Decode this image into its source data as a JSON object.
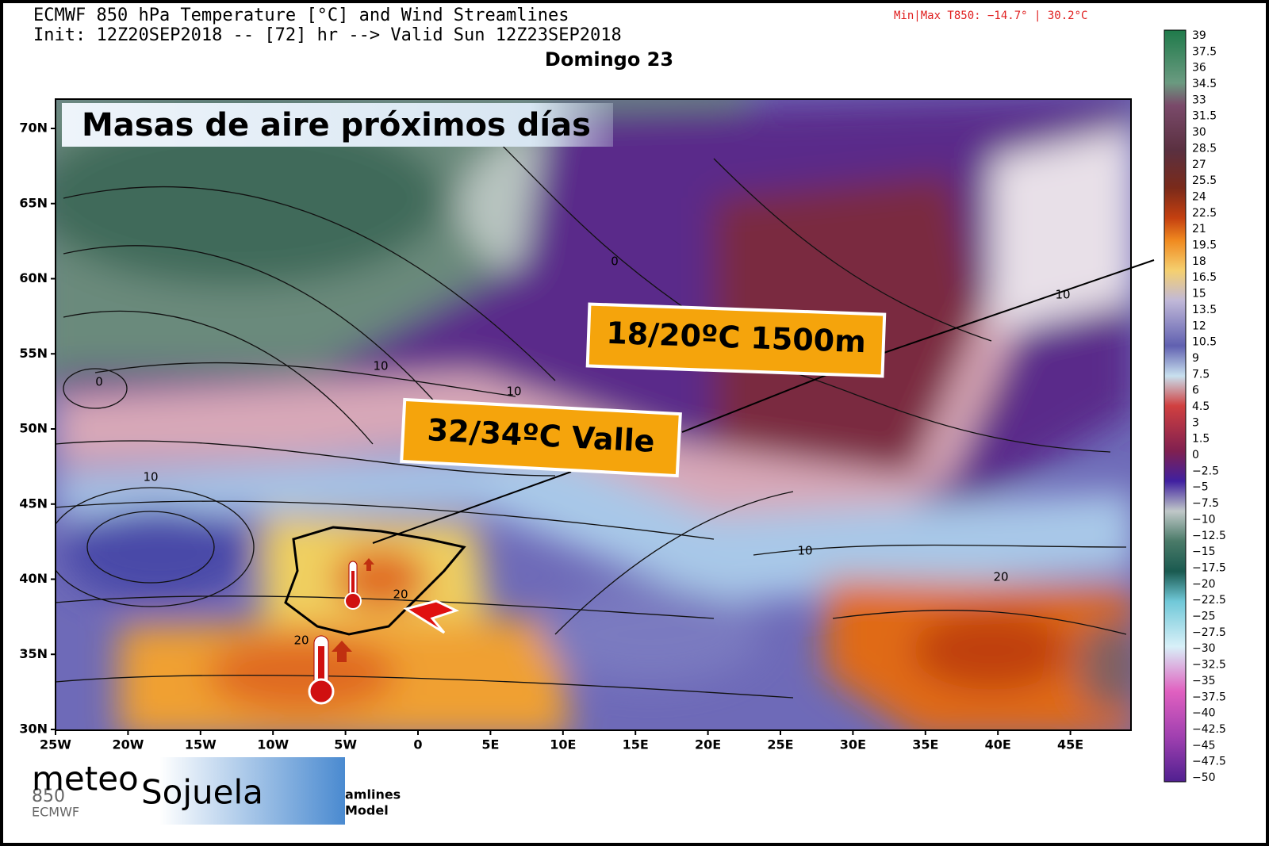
{
  "header": {
    "line1": "ECMWF 850 hPa Temperature [°C] and Wind Streamlines",
    "line2": "Init: 12Z20SEP2018 -- [72] hr --> Valid Sun 12Z23SEP2018",
    "day": "Domingo 23",
    "minmax": "Min|Max T850: −14.7° |  30.2°C"
  },
  "overlay_title": "Masas de aire próximos días",
  "callouts": [
    "18/20ºC 1500m",
    "32/34ºC Valle"
  ],
  "lat_labels": [
    "70N",
    "65N",
    "60N",
    "55N",
    "50N",
    "45N",
    "40N",
    "35N",
    "30N"
  ],
  "lon_labels": [
    "25W",
    "20W",
    "15W",
    "10W",
    "5W",
    "0",
    "5E",
    "10E",
    "15E",
    "20E",
    "25E",
    "30E",
    "35E",
    "40E",
    "45E"
  ],
  "contour_labels": [
    "0",
    "0",
    "10",
    "10",
    "10",
    "10",
    "10",
    "20",
    "20",
    "20"
  ],
  "colorbar_labels": [
    "39",
    "37.5",
    "36",
    "34.5",
    "33",
    "31.5",
    "30",
    "28.5",
    "27",
    "25.5",
    "24",
    "22.5",
    "21",
    "19.5",
    "18",
    "16.5",
    "15",
    "13.5",
    "12",
    "10.5",
    "9",
    "7.5",
    "6",
    "4.5",
    "3",
    "1.5",
    "0",
    "−2.5",
    "−5",
    "−7.5",
    "−10",
    "−12.5",
    "−15",
    "−17.5",
    "−20",
    "−22.5",
    "−25",
    "−27.5",
    "−30",
    "−32.5",
    "−35",
    "−37.5",
    "−40",
    "−42.5",
    "−45",
    "−47.5",
    "−50"
  ],
  "logo": {
    "part1": "meteo",
    "part2": "Sojuela"
  },
  "footer_fragments": [
    "850",
    "ECMWF",
    "amlines",
    "Model"
  ]
}
